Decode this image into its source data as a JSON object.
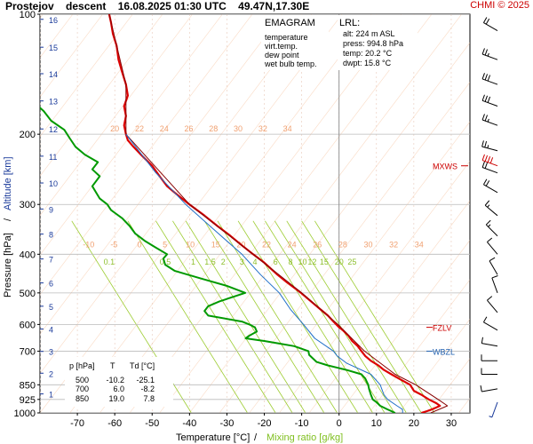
{
  "header": {
    "station": "Prostejov",
    "mode": "descent",
    "datetime": "16.08.2025 01:30 UTC",
    "coords": "49.47N,17.30E",
    "credit": "CHMI © 2025"
  },
  "colors": {
    "temperature": "#dd0000",
    "virt_temp": "#880000",
    "dew_point": "#009900",
    "wet_bulb": "#1f6fc8",
    "isotherm": "#f4b58a",
    "mixing_ratio": "#9ccc30",
    "isobar": "#bbbbbb",
    "alt_label": "#1a3a9a",
    "fzlv": "#cc0000",
    "wbzl": "#2060b0"
  },
  "legend": {
    "title": "EMAGRAM",
    "items": [
      {
        "label": "temperature",
        "color": "#dd0000"
      },
      {
        "label": "virt.temp.",
        "color": "#880000"
      },
      {
        "label": "dew point",
        "color": "#009900"
      },
      {
        "label": "wet bulb temp.",
        "color": "#1f6fc8"
      }
    ]
  },
  "lrl": {
    "title": "LRL:",
    "lines": [
      {
        "text": "alt: 224 m ASL",
        "color": "#1a3a9a"
      },
      {
        "text": "press: 994.8 hPa",
        "color": "#000000"
      },
      {
        "text": "temp: 20.2 °C",
        "color": "#cc0000"
      },
      {
        "text": "dwpt: 15.8 °C",
        "color": "#009900"
      }
    ]
  },
  "table": {
    "headers": [
      "p [hPa]",
      "T",
      "Td [°C]"
    ],
    "rows": [
      [
        "500",
        "-10.2",
        "-25.1"
      ],
      [
        "700",
        "6.0",
        "-8.2"
      ],
      [
        "850",
        "19.0",
        "7.8"
      ]
    ]
  },
  "markers": {
    "mxws": {
      "label": "MXWS",
      "p": 240
    },
    "fzlv": {
      "label": "FZLV",
      "p": 610
    },
    "wbzl": {
      "label": "WBZL",
      "p": 700
    }
  },
  "chart_data": {
    "type": "line",
    "xlabel": "Temperature [°C]",
    "xlabel_sep": "/",
    "xlabel2": "Mixing ratio [g/kg]",
    "ylabel": "Pressure [hPa]",
    "ylabel_sep": "/",
    "ylabel2": "Altitude [km]",
    "xlim": [
      -80,
      35
    ],
    "ylim": [
      1000,
      100
    ],
    "yscale": "log",
    "x_ticks": [
      -70,
      -60,
      -50,
      -40,
      -30,
      -20,
      -10,
      0,
      10,
      20,
      30
    ],
    "y_ticks": [
      100,
      200,
      300,
      400,
      500,
      600,
      700,
      850,
      925,
      1000
    ],
    "altitude_ticks": [
      {
        "km": 1,
        "p": 896
      },
      {
        "km": 2,
        "p": 795
      },
      {
        "km": 3,
        "p": 701
      },
      {
        "km": 4,
        "p": 616
      },
      {
        "km": 5,
        "p": 540
      },
      {
        "km": 6,
        "p": 472
      },
      {
        "km": 7,
        "p": 411
      },
      {
        "km": 8,
        "p": 356
      },
      {
        "km": 9,
        "p": 308
      },
      {
        "km": 10,
        "p": 265
      },
      {
        "km": 11,
        "p": 227
      },
      {
        "km": 12,
        "p": 194
      },
      {
        "km": 13,
        "p": 165
      },
      {
        "km": 14,
        "p": 141
      },
      {
        "km": 15,
        "p": 121
      },
      {
        "km": 16,
        "p": 103
      }
    ],
    "isotherm_labels": {
      "row1": {
        "p": 200,
        "values": [
          20,
          22,
          24,
          26,
          28,
          30,
          32,
          34
        ]
      },
      "row2": {
        "p": 390,
        "values": [
          -10,
          -5,
          0,
          5,
          10,
          15,
          20,
          22,
          24,
          26,
          28,
          30,
          32,
          34
        ]
      }
    },
    "mixing_ratio_values": [
      0.1,
      0.5,
      1,
      1.5,
      2,
      3,
      4,
      6,
      8,
      10,
      12,
      15,
      20,
      25
    ],
    "series": [
      {
        "name": "temperature",
        "points": [
          {
            "p": 1000,
            "t": 22.0
          },
          {
            "p": 990,
            "t": 23.5
          },
          {
            "p": 980,
            "t": 24.8
          },
          {
            "p": 960,
            "t": 27.0
          },
          {
            "p": 945,
            "t": 26.0
          },
          {
            "p": 925,
            "t": 24.0
          },
          {
            "p": 900,
            "t": 22.0
          },
          {
            "p": 880,
            "t": 20.0
          },
          {
            "p": 850,
            "t": 19.0
          },
          {
            "p": 820,
            "t": 16.0
          },
          {
            "p": 800,
            "t": 14.0
          },
          {
            "p": 780,
            "t": 12.0
          },
          {
            "p": 760,
            "t": 10.5
          },
          {
            "p": 740,
            "t": 8.5
          },
          {
            "p": 720,
            "t": 7.0
          },
          {
            "p": 700,
            "t": 6.0
          },
          {
            "p": 680,
            "t": 5.0
          },
          {
            "p": 660,
            "t": 3.5
          },
          {
            "p": 640,
            "t": 2.5
          },
          {
            "p": 620,
            "t": 1.0
          },
          {
            "p": 610,
            "t": 0.0
          },
          {
            "p": 590,
            "t": -1.5
          },
          {
            "p": 570,
            "t": -3.0
          },
          {
            "p": 550,
            "t": -5.0
          },
          {
            "p": 530,
            "t": -7.0
          },
          {
            "p": 500,
            "t": -10.2
          },
          {
            "p": 470,
            "t": -14.0
          },
          {
            "p": 450,
            "t": -16.5
          },
          {
            "p": 420,
            "t": -20.0
          },
          {
            "p": 400,
            "t": -23.0
          },
          {
            "p": 380,
            "t": -26.0
          },
          {
            "p": 360,
            "t": -29.0
          },
          {
            "p": 340,
            "t": -32.5
          },
          {
            "p": 320,
            "t": -36.0
          },
          {
            "p": 300,
            "t": -40.0
          },
          {
            "p": 290,
            "t": -42.0
          },
          {
            "p": 280,
            "t": -44.0
          },
          {
            "p": 270,
            "t": -46.0
          },
          {
            "p": 255,
            "t": -48.0
          },
          {
            "p": 240,
            "t": -50.0
          },
          {
            "p": 225,
            "t": -53.0
          },
          {
            "p": 215,
            "t": -55.0
          },
          {
            "p": 207,
            "t": -56.5
          },
          {
            "p": 200,
            "t": -57.0
          },
          {
            "p": 190,
            "t": -57.5
          },
          {
            "p": 180,
            "t": -57.0
          },
          {
            "p": 170,
            "t": -57.5
          },
          {
            "p": 160,
            "t": -56.5
          },
          {
            "p": 150,
            "t": -57.0
          },
          {
            "p": 140,
            "t": -58.0
          },
          {
            "p": 130,
            "t": -59.0
          },
          {
            "p": 120,
            "t": -59.5
          },
          {
            "p": 112,
            "t": -60.5
          },
          {
            "p": 105,
            "t": -61.0
          },
          {
            "p": 100,
            "t": -61.5
          }
        ]
      },
      {
        "name": "virt.temp.",
        "points": [
          {
            "p": 1000,
            "t": 24.5
          },
          {
            "p": 960,
            "t": 29.0
          },
          {
            "p": 925,
            "t": 26.5
          },
          {
            "p": 850,
            "t": 20.5
          },
          {
            "p": 800,
            "t": 15.0
          },
          {
            "p": 700,
            "t": 6.8
          },
          {
            "p": 600,
            "t": -0.3
          },
          {
            "p": 500,
            "t": -10.0
          },
          {
            "p": 400,
            "t": -23.0
          },
          {
            "p": 300,
            "t": -40.0
          },
          {
            "p": 200,
            "t": -57.0
          },
          {
            "p": 150,
            "t": -57.0
          },
          {
            "p": 100,
            "t": -61.5
          }
        ]
      },
      {
        "name": "dew point",
        "points": [
          {
            "p": 1000,
            "t": 15.0
          },
          {
            "p": 990,
            "t": 14.0
          },
          {
            "p": 980,
            "t": 13.0
          },
          {
            "p": 960,
            "t": 11.0
          },
          {
            "p": 940,
            "t": 10.0
          },
          {
            "p": 925,
            "t": 9.0
          },
          {
            "p": 900,
            "t": 8.5
          },
          {
            "p": 870,
            "t": 8.0
          },
          {
            "p": 850,
            "t": 7.8
          },
          {
            "p": 820,
            "t": 7.0
          },
          {
            "p": 800,
            "t": 6.0
          },
          {
            "p": 780,
            "t": 2.0
          },
          {
            "p": 760,
            "t": -3.0
          },
          {
            "p": 745,
            "t": -6.0
          },
          {
            "p": 730,
            "t": -7.0
          },
          {
            "p": 715,
            "t": -8.0
          },
          {
            "p": 700,
            "t": -8.2
          },
          {
            "p": 680,
            "t": -12.0
          },
          {
            "p": 670,
            "t": -16.0
          },
          {
            "p": 660,
            "t": -20.0
          },
          {
            "p": 650,
            "t": -25.0
          },
          {
            "p": 640,
            "t": -24.0
          },
          {
            "p": 625,
            "t": -22.0
          },
          {
            "p": 610,
            "t": -22.5
          },
          {
            "p": 600,
            "t": -24.0
          },
          {
            "p": 590,
            "t": -26.0
          },
          {
            "p": 570,
            "t": -35.0
          },
          {
            "p": 555,
            "t": -36.0
          },
          {
            "p": 540,
            "t": -35.0
          },
          {
            "p": 525,
            "t": -32.0
          },
          {
            "p": 500,
            "t": -25.1
          },
          {
            "p": 480,
            "t": -30.0
          },
          {
            "p": 460,
            "t": -37.0
          },
          {
            "p": 440,
            "t": -44.0
          },
          {
            "p": 425,
            "t": -46.5
          },
          {
            "p": 410,
            "t": -47.0
          },
          {
            "p": 400,
            "t": -46.0
          },
          {
            "p": 385,
            "t": -49.0
          },
          {
            "p": 370,
            "t": -52.0
          },
          {
            "p": 355,
            "t": -54.5
          },
          {
            "p": 340,
            "t": -56.0
          },
          {
            "p": 325,
            "t": -58.0
          },
          {
            "p": 310,
            "t": -61.0
          },
          {
            "p": 300,
            "t": -62.0
          },
          {
            "p": 290,
            "t": -64.0
          },
          {
            "p": 270,
            "t": -66.0
          },
          {
            "p": 255,
            "t": -64.0
          },
          {
            "p": 245,
            "t": -66.0
          },
          {
            "p": 235,
            "t": -64.5
          },
          {
            "p": 225,
            "t": -68.0
          },
          {
            "p": 215,
            "t": -70.5
          },
          {
            "p": 205,
            "t": -72.0
          },
          {
            "p": 195,
            "t": -73.5
          },
          {
            "p": 185,
            "t": -77.0
          },
          {
            "p": 175,
            "t": -79.0
          },
          {
            "p": 165,
            "t": -82.0
          }
        ]
      },
      {
        "name": "wet bulb temp.",
        "points": [
          {
            "p": 1000,
            "t": 17.0
          },
          {
            "p": 980,
            "t": 17.0
          },
          {
            "p": 960,
            "t": 15.5
          },
          {
            "p": 925,
            "t": 13.0
          },
          {
            "p": 900,
            "t": 12.0
          },
          {
            "p": 850,
            "t": 11.0
          },
          {
            "p": 800,
            "t": 8.5
          },
          {
            "p": 750,
            "t": 2.0
          },
          {
            "p": 720,
            "t": -0.5
          },
          {
            "p": 700,
            "t": -1.5
          },
          {
            "p": 650,
            "t": -6.5
          },
          {
            "p": 600,
            "t": -9.5
          },
          {
            "p": 550,
            "t": -13.0
          },
          {
            "p": 500,
            "t": -16.0
          },
          {
            "p": 450,
            "t": -21.0
          },
          {
            "p": 400,
            "t": -26.0
          },
          {
            "p": 350,
            "t": -33.0
          },
          {
            "p": 300,
            "t": -41.0
          },
          {
            "p": 250,
            "t": -49.0
          },
          {
            "p": 200,
            "t": -57.0
          }
        ]
      }
    ],
    "wind_barbs": [
      {
        "p": 110,
        "dir": 300,
        "spd": 20
      },
      {
        "p": 130,
        "dir": 290,
        "spd": 25
      },
      {
        "p": 150,
        "dir": 290,
        "spd": 30
      },
      {
        "p": 170,
        "dir": 290,
        "spd": 30
      },
      {
        "p": 190,
        "dir": 290,
        "spd": 25
      },
      {
        "p": 220,
        "dir": 285,
        "spd": 25
      },
      {
        "p": 250,
        "dir": 290,
        "spd": 20
      },
      {
        "p": 280,
        "dir": 300,
        "spd": 20
      },
      {
        "p": 320,
        "dir": 310,
        "spd": 15
      },
      {
        "p": 360,
        "dir": 315,
        "spd": 15
      },
      {
        "p": 400,
        "dir": 320,
        "spd": 10
      },
      {
        "p": 450,
        "dir": 330,
        "spd": 10
      },
      {
        "p": 500,
        "dir": 340,
        "spd": 10
      },
      {
        "p": 560,
        "dir": 320,
        "spd": 10
      },
      {
        "p": 620,
        "dir": 300,
        "spd": 10
      },
      {
        "p": 680,
        "dir": 280,
        "spd": 10
      },
      {
        "p": 740,
        "dir": 270,
        "spd": 10
      },
      {
        "p": 800,
        "dir": 270,
        "spd": 10
      },
      {
        "p": 870,
        "dir": 260,
        "spd": 10
      },
      {
        "p": 940,
        "dir": 200,
        "spd": 5
      }
    ],
    "mxws_barb": {
      "p": 240,
      "dir": 290,
      "spd": 40
    }
  }
}
